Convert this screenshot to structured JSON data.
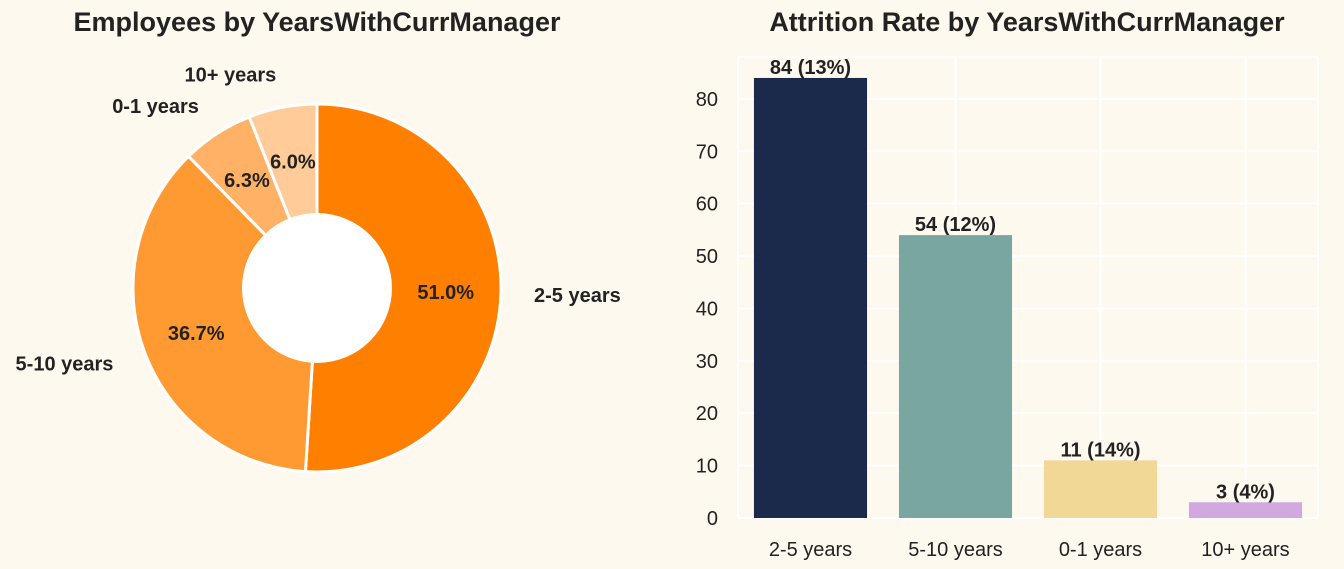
{
  "chart_data": [
    {
      "type": "pie",
      "title": "Employees by YearsWithCurrManager",
      "donut": true,
      "categories": [
        "2-5 years",
        "5-10 years",
        "0-1 years",
        "10+ years"
      ],
      "values": [
        51.0,
        36.7,
        6.3,
        6.0
      ],
      "value_labels": [
        "51.0%",
        "36.7%",
        "6.3%",
        "6.0%"
      ],
      "colors": [
        "#ff8000",
        "#ff9a33",
        "#ffb266",
        "#ffcc99"
      ],
      "start_angle": "top, clockwise"
    },
    {
      "type": "bar",
      "title": "Attrition Rate by YearsWithCurrManager",
      "categories": [
        "2-5 years",
        "5-10 years",
        "0-1 years",
        "10+ years"
      ],
      "values": [
        84,
        54,
        11,
        3
      ],
      "value_labels": [
        "84 (13%)",
        "54 (12%)",
        "11 (14%)",
        "3 (4%)"
      ],
      "colors": [
        "#1b2a4a",
        "#79a6a0",
        "#f1d897",
        "#d1a8e0"
      ],
      "ylim": [
        0,
        88
      ],
      "yticks": [
        0,
        10,
        20,
        30,
        40,
        50,
        60,
        70,
        80
      ],
      "xlabel": "",
      "ylabel": "",
      "grid": true
    }
  ]
}
